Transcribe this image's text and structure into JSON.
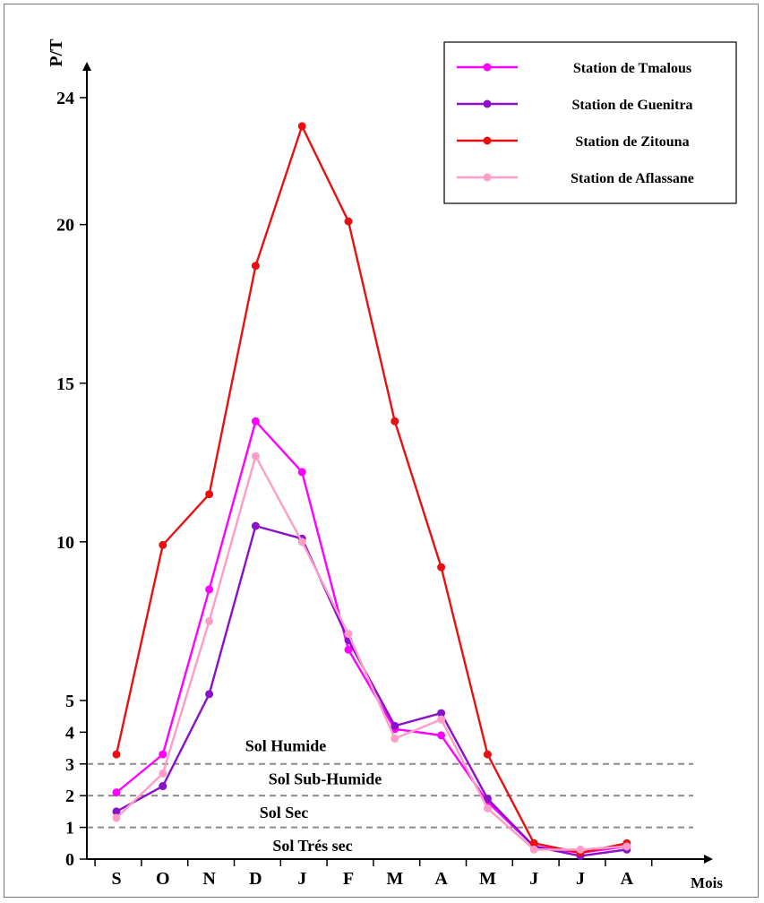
{
  "chart_data": {
    "type": "line",
    "ylabel": "P/T",
    "xlabel": "Mois",
    "categories": [
      "S",
      "O",
      "N",
      "D",
      "J",
      "F",
      "M",
      "A",
      "M",
      "J",
      "J",
      "A"
    ],
    "yticks": [
      0,
      1,
      2,
      3,
      4,
      5,
      10,
      15,
      20,
      24
    ],
    "ylim": [
      0,
      25.5
    ],
    "legend_position": "top-right",
    "series": [
      {
        "name": "Station de Tmalous",
        "color": "#ff00ff",
        "values": [
          2.1,
          3.3,
          8.5,
          13.8,
          12.2,
          6.6,
          4.1,
          3.9,
          1.8,
          0.4,
          0.2,
          0.4
        ]
      },
      {
        "name": "Station de Guenitra",
        "color": "#8b10c9",
        "values": [
          1.5,
          2.3,
          5.2,
          10.5,
          10.1,
          6.9,
          4.2,
          4.6,
          1.9,
          0.4,
          0.1,
          0.3
        ]
      },
      {
        "name": "Station de Zitouna",
        "color": "#e81010",
        "values": [
          3.3,
          9.9,
          11.5,
          18.7,
          23.1,
          20.1,
          13.8,
          9.2,
          3.3,
          0.5,
          0.2,
          0.5
        ]
      },
      {
        "name": "Station de Aflassane",
        "color": "#ff9cc8",
        "values": [
          1.3,
          2.7,
          7.5,
          12.7,
          10.0,
          7.1,
          3.8,
          4.4,
          1.6,
          0.3,
          0.3,
          0.4
        ]
      }
    ],
    "thresholds": [
      3,
      2,
      1
    ],
    "zones": [
      "Sol Humide",
      "Sol Sub-Humide",
      "Sol Sec",
      "Sol Trés sec"
    ]
  }
}
